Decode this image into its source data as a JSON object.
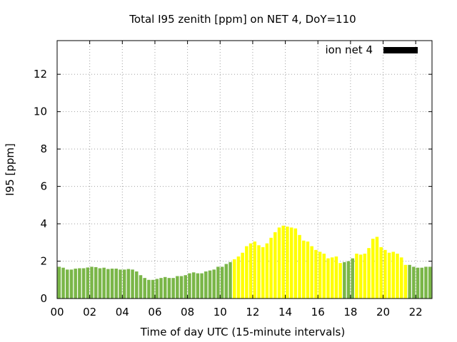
{
  "chart_data": {
    "type": "bar",
    "title": "Total I95 zenith [ppm] on NET 4, DoY=110",
    "xlabel": "Time of day UTC (15-minute intervals)",
    "ylabel": "I95 [ppm]",
    "xlim": [
      0,
      23
    ],
    "ylim": [
      0,
      13.8
    ],
    "xticks": [
      "00",
      "02",
      "04",
      "06",
      "08",
      "10",
      "12",
      "14",
      "16",
      "18",
      "20",
      "22"
    ],
    "yticks": [
      "0",
      "2",
      "4",
      "6",
      "8",
      "10",
      "12"
    ],
    "grid": true,
    "legend": {
      "label": "ion net 4",
      "placement": "top-right",
      "color": "#000000"
    },
    "bar_width_hours": 0.25,
    "colors": {
      "quiet": "#7ab648",
      "disturbed": "#ffff00"
    },
    "x": [
      0.125,
      0.375,
      0.625,
      0.875,
      1.125,
      1.375,
      1.625,
      1.875,
      2.125,
      2.375,
      2.625,
      2.875,
      3.125,
      3.375,
      3.625,
      3.875,
      4.125,
      4.375,
      4.625,
      4.875,
      5.125,
      5.375,
      5.625,
      5.875,
      6.125,
      6.375,
      6.625,
      6.875,
      7.125,
      7.375,
      7.625,
      7.875,
      8.125,
      8.375,
      8.625,
      8.875,
      9.125,
      9.375,
      9.625,
      9.875,
      10.125,
      10.375,
      10.625,
      10.875,
      11.125,
      11.375,
      11.625,
      11.875,
      12.125,
      12.375,
      12.625,
      12.875,
      13.125,
      13.375,
      13.625,
      13.875,
      14.125,
      14.375,
      14.625,
      14.875,
      15.125,
      15.375,
      15.625,
      15.875,
      16.125,
      16.375,
      16.625,
      16.875,
      17.125,
      17.375,
      17.625,
      17.875,
      18.125,
      18.375,
      18.625,
      18.875,
      19.125,
      19.375,
      19.625,
      19.875,
      20.125,
      20.375,
      20.625,
      20.875,
      21.125,
      21.375,
      21.625,
      21.875,
      22.125,
      22.375,
      22.625,
      22.875
    ],
    "values": [
      1.7,
      1.65,
      1.55,
      1.55,
      1.6,
      1.62,
      1.62,
      1.66,
      1.7,
      1.68,
      1.62,
      1.65,
      1.58,
      1.6,
      1.6,
      1.55,
      1.55,
      1.58,
      1.55,
      1.45,
      1.25,
      1.1,
      1.0,
      1.0,
      1.05,
      1.1,
      1.15,
      1.1,
      1.1,
      1.2,
      1.2,
      1.25,
      1.35,
      1.4,
      1.35,
      1.35,
      1.45,
      1.5,
      1.55,
      1.7,
      1.7,
      1.85,
      1.95,
      2.1,
      2.25,
      2.45,
      2.8,
      2.95,
      3.05,
      2.85,
      2.75,
      2.95,
      3.25,
      3.55,
      3.8,
      3.9,
      3.85,
      3.8,
      3.75,
      3.4,
      3.1,
      3.05,
      2.8,
      2.6,
      2.5,
      2.4,
      2.15,
      2.2,
      2.25,
      1.9,
      1.95,
      2.0,
      2.15,
      2.4,
      2.35,
      2.4,
      2.7,
      3.2,
      3.3,
      2.75,
      2.6,
      2.45,
      2.5,
      2.4,
      2.2,
      1.8,
      1.8,
      1.7,
      1.65,
      1.65,
      1.7,
      1.7
    ],
    "status": [
      "quiet",
      "quiet",
      "quiet",
      "quiet",
      "quiet",
      "quiet",
      "quiet",
      "quiet",
      "quiet",
      "quiet",
      "quiet",
      "quiet",
      "quiet",
      "quiet",
      "quiet",
      "quiet",
      "quiet",
      "quiet",
      "quiet",
      "quiet",
      "quiet",
      "quiet",
      "quiet",
      "quiet",
      "quiet",
      "quiet",
      "quiet",
      "quiet",
      "quiet",
      "quiet",
      "quiet",
      "quiet",
      "quiet",
      "quiet",
      "quiet",
      "quiet",
      "quiet",
      "quiet",
      "quiet",
      "quiet",
      "quiet",
      "quiet",
      "quiet",
      "disturbed",
      "disturbed",
      "disturbed",
      "disturbed",
      "disturbed",
      "disturbed",
      "disturbed",
      "disturbed",
      "disturbed",
      "disturbed",
      "disturbed",
      "disturbed",
      "disturbed",
      "disturbed",
      "disturbed",
      "disturbed",
      "disturbed",
      "disturbed",
      "disturbed",
      "disturbed",
      "disturbed",
      "disturbed",
      "disturbed",
      "disturbed",
      "disturbed",
      "disturbed",
      "disturbed",
      "quiet",
      "quiet",
      "quiet",
      "disturbed",
      "disturbed",
      "disturbed",
      "disturbed",
      "disturbed",
      "disturbed",
      "disturbed",
      "disturbed",
      "disturbed",
      "disturbed",
      "disturbed",
      "disturbed",
      "disturbed",
      "quiet",
      "quiet",
      "quiet",
      "quiet",
      "quiet",
      "quiet"
    ]
  }
}
